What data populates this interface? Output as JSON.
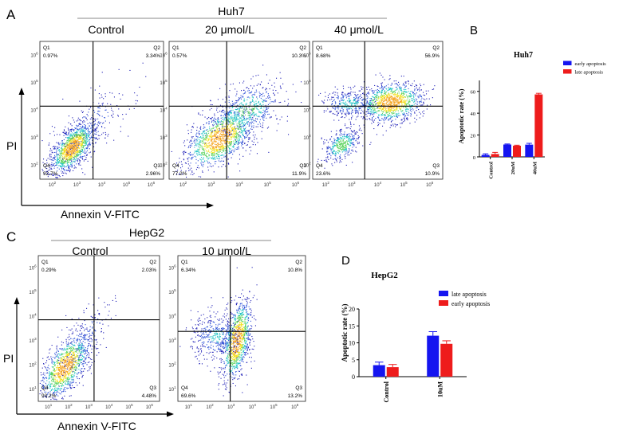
{
  "panels": {
    "A": {
      "letter": "A",
      "cell_line": "Huh7",
      "x_axis_label": "Annexin  V-FITC",
      "y_axis_label": "PI",
      "decades": [
        "10^2",
        "10^3",
        "10^4",
        "10^5",
        "10^6"
      ],
      "plots": [
        {
          "condition": "Control",
          "q1": "0.97%",
          "q2": "3.34%",
          "q3": "2.96%",
          "q4": "92.7%"
        },
        {
          "condition": "20 μmol/L",
          "q1": "0.57%",
          "q2": "10.3%",
          "q3": "11.9%",
          "q4": "77.2%"
        },
        {
          "condition": "40 μmol/L",
          "q1": "8.68%",
          "q2": "56.9%",
          "q3": "10.9%",
          "q4": "23.6%"
        }
      ]
    },
    "C": {
      "letter": "C",
      "cell_line": "HepG2",
      "x_axis_label": "Annexin  V-FITC",
      "y_axis_label": "PI",
      "decades": [
        "10^1",
        "10^2",
        "10^3",
        "10^4",
        "10^5",
        "10^6"
      ],
      "plots": [
        {
          "condition": "Control",
          "q1": "0.29%",
          "q2": "2.03%",
          "q3": "4.48%",
          "q4": "93.2%"
        },
        {
          "condition": "10 μmol/L",
          "q1": "6.34%",
          "q2": "10.8%",
          "q3": "13.2%",
          "q4": "69.6%"
        }
      ]
    }
  },
  "quadrant_labels": {
    "q1": "Q1",
    "q2": "Q2",
    "q3": "Q3",
    "q4": "Q4"
  },
  "colors": {
    "early": "#1515f0",
    "late": "#ee1c1c",
    "axis": "#000000"
  },
  "chart_data": [
    {
      "letter": "B",
      "type": "bar",
      "title": "Huh7",
      "ylabel": "Apoptotic rate (%)",
      "xlabel": "",
      "categories": [
        "Control",
        "20uM",
        "40uM"
      ],
      "ylim": [
        0,
        70
      ],
      "yticks": [
        0,
        20,
        40,
        60
      ],
      "legend_position": "top-right",
      "series": [
        {
          "name": "early apoptosis",
          "color": "#1515f0",
          "values": [
            1.8,
            11.3,
            11.2
          ],
          "errors": [
            1.0,
            0.5,
            1.2
          ]
        },
        {
          "name": "late apoptosis",
          "color": "#ee1c1c",
          "values": [
            2.6,
            10.2,
            57.2
          ],
          "errors": [
            1.5,
            0.5,
            1.0
          ]
        }
      ]
    },
    {
      "letter": "D",
      "type": "bar",
      "title": "HepG2",
      "ylabel": "Apoptotic rate (%)",
      "xlabel": "",
      "categories": [
        "Control",
        "10uM"
      ],
      "ylim": [
        0,
        20
      ],
      "yticks": [
        0,
        5,
        10,
        15,
        20
      ],
      "legend_position": "top-right",
      "series": [
        {
          "name": "late apoptosis",
          "color": "#1515f0",
          "values": [
            3.4,
            12.1
          ],
          "errors": [
            0.9,
            1.2
          ]
        },
        {
          "name": "early apoptosis",
          "color": "#ee1c1c",
          "values": [
            2.8,
            9.7
          ],
          "errors": [
            0.8,
            0.9
          ]
        }
      ]
    }
  ]
}
